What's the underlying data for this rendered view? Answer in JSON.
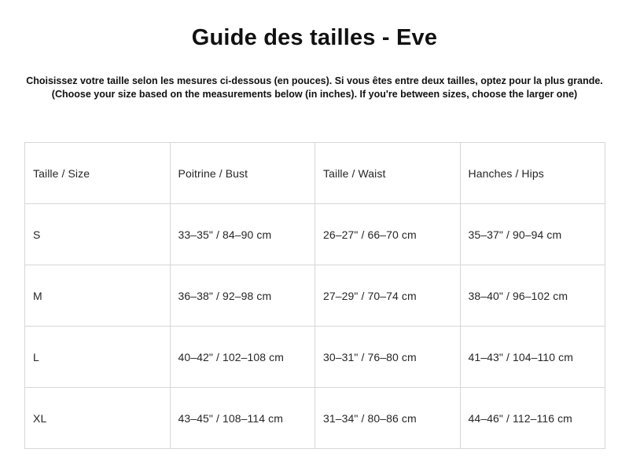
{
  "page": {
    "title": "Guide des tailles - Eve",
    "subtitle_line1": "Choisissez votre taille selon les mesures ci-dessous (en pouces). Si vous êtes entre deux tailles, optez pour la plus grande.",
    "subtitle_line2": "(Choose your size based on the measurements below (in inches). If you're between sizes, choose the larger one)"
  },
  "table": {
    "headers": [
      "Taille / Size",
      "Poitrine / Bust",
      "Taille / Waist",
      "Hanches / Hips"
    ],
    "rows": [
      [
        "S",
        "33–35\" / 84–90 cm",
        "26–27\" / 66–70 cm",
        "35–37\" / 90–94 cm"
      ],
      [
        "M",
        "36–38\" / 92–98 cm",
        "27–29\" / 70–74 cm",
        "38–40\" / 96–102 cm"
      ],
      [
        "L",
        "40–42\" / 102–108 cm",
        "30–31\" / 76–80 cm",
        "41–43\" / 104–110 cm"
      ],
      [
        "XL",
        "43–45\" / 108–114 cm",
        "31–34\" / 80–86 cm",
        "44–46\" / 112–116 cm"
      ]
    ]
  },
  "colors": {
    "background": "#ffffff",
    "text": "#111111",
    "cell_text": "#262626",
    "border": "#d7d7d7"
  }
}
